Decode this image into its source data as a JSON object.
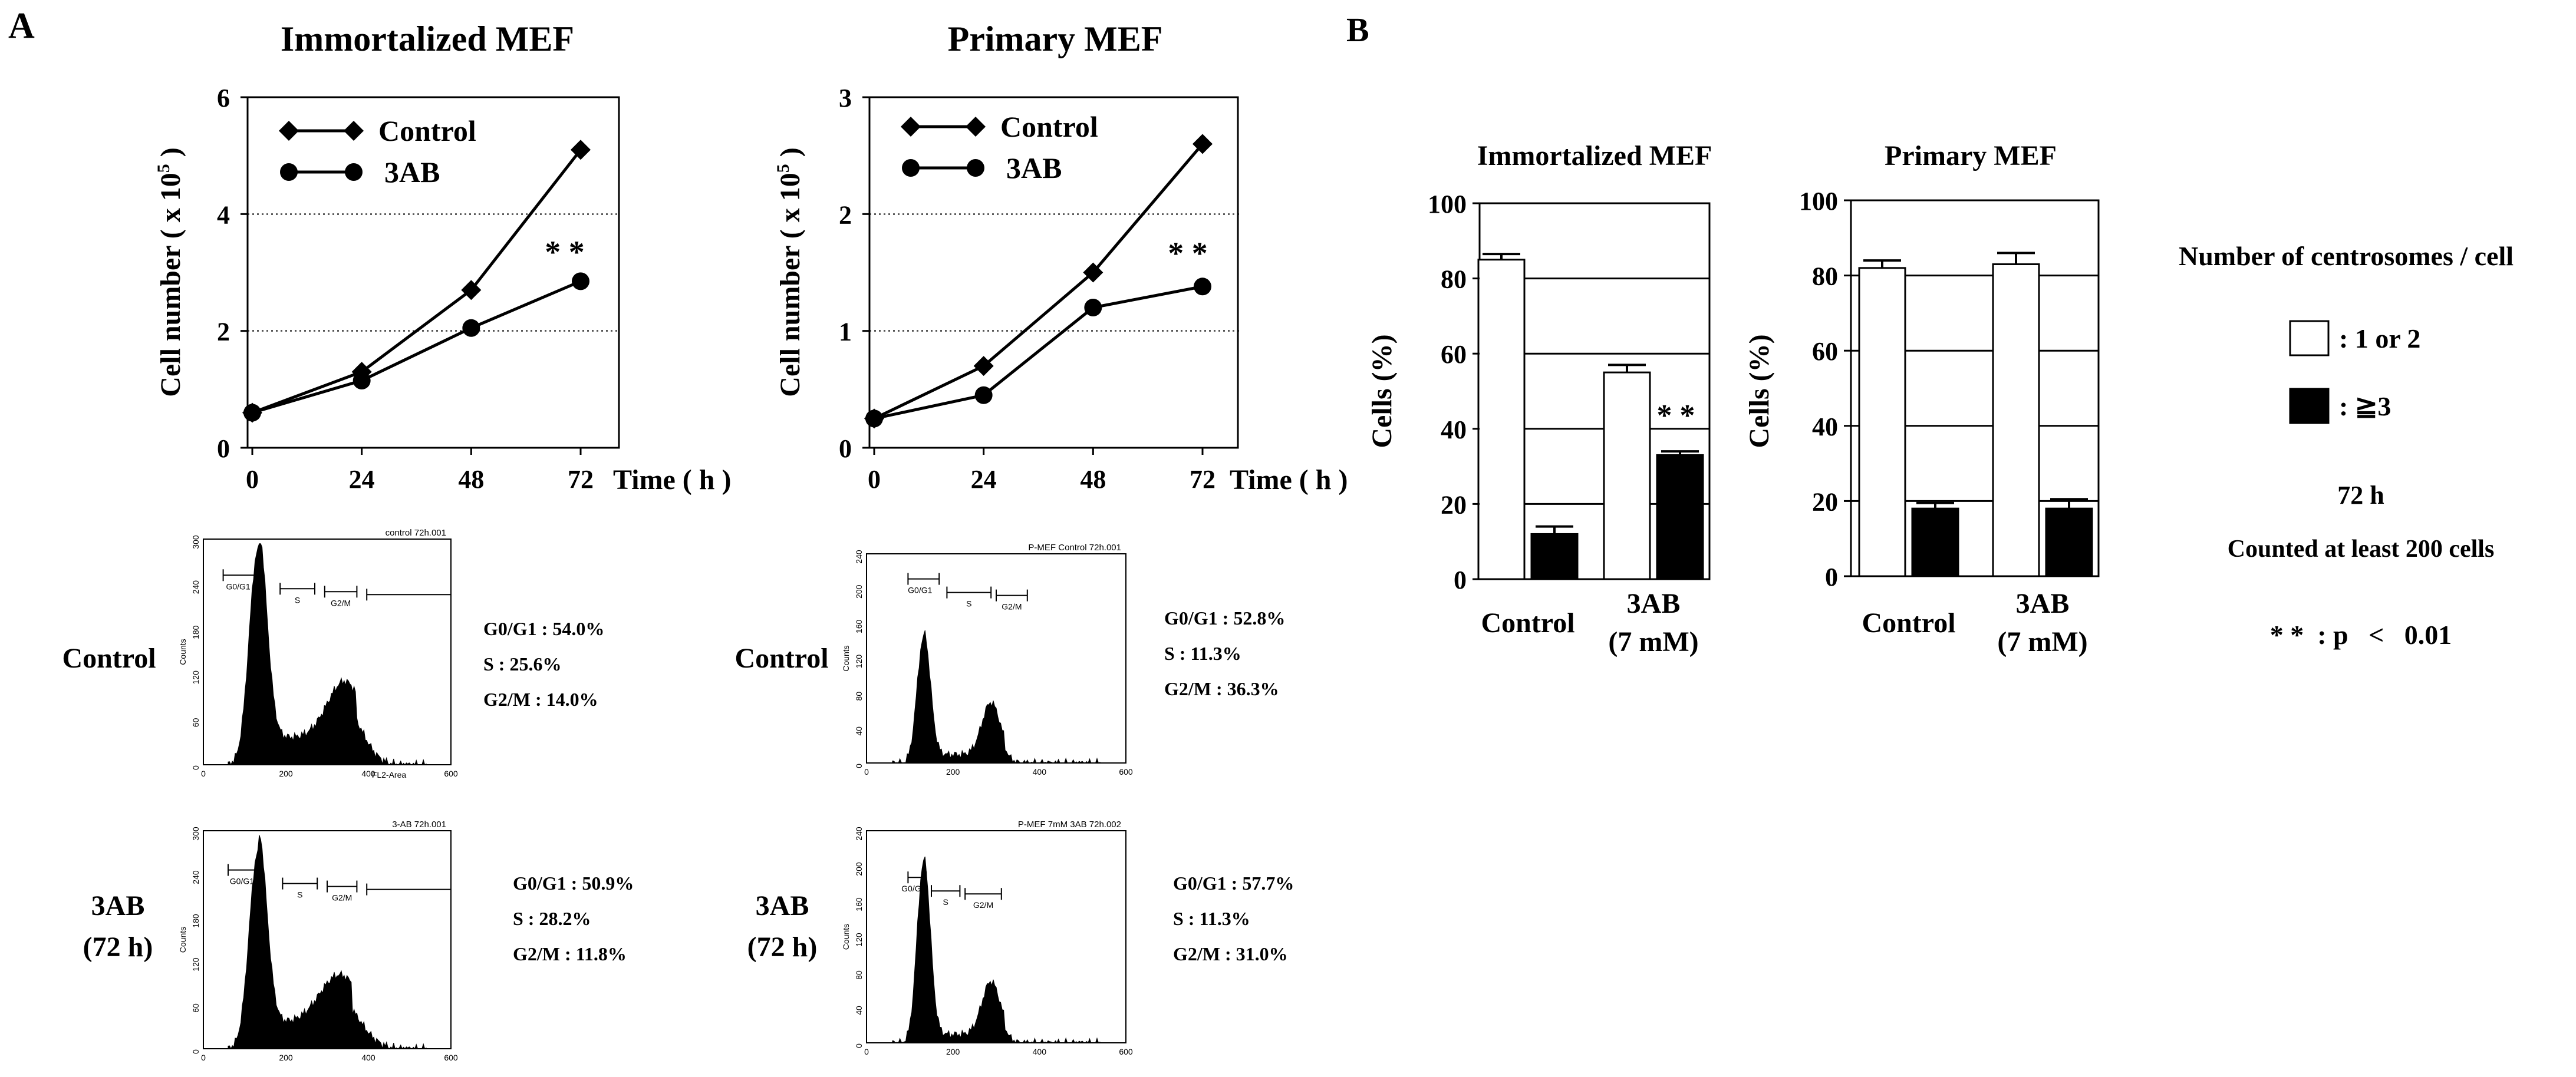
{
  "panel_labels": {
    "a": "A",
    "b": "B"
  },
  "growth_a": {
    "title": "Immortalized MEF",
    "ylabel": "Cell number ( x 10",
    "ylabel_sup": "5",
    "ylabel_end": " )",
    "xlabel": "Time ( h )",
    "sig": "* *"
  },
  "growth_b": {
    "title": "Primary MEF",
    "ylabel": "Cell number ( x 10",
    "ylabel_sup": "5",
    "ylabel_end": " )",
    "xlabel": "Time ( h )",
    "sig": "* *"
  },
  "flow": {
    "row_labels": {
      "control": "Control",
      "treat_1": "3AB",
      "treat_2": "(72 h)"
    },
    "hist": [
      {
        "title": "control 72h.001",
        "ylabel": "Counts",
        "xlabel": "FL2-Area",
        "ticks_y": [
          "0",
          "60",
          "120",
          "180",
          "240",
          "300"
        ],
        "ticks_x": [
          "0",
          "200",
          "400",
          "600"
        ],
        "gates": [
          "G0/G1",
          "S",
          "G2/M"
        ],
        "stats": [
          "G0/G1 : 54.0%",
          "S     : 25.6%",
          "G2/M   : 14.0%"
        ]
      },
      {
        "title": "P-MEF Control 72h.001",
        "ylabel": "Counts",
        "xlabel": "",
        "ticks_y": [
          "0",
          "40",
          "80",
          "120",
          "160",
          "200",
          "240"
        ],
        "ticks_x": [
          "0",
          "200",
          "400",
          "600"
        ],
        "gates": [
          "G0/G1",
          "S",
          "G2/M"
        ],
        "stats": [
          "G0/G1 : 52.8%",
          "S     : 11.3%",
          "G2/M   : 36.3%"
        ]
      },
      {
        "title": "3-AB 72h.001",
        "ylabel": "Counts",
        "xlabel": "",
        "ticks_y": [
          "0",
          "60",
          "120",
          "180",
          "240",
          "300"
        ],
        "ticks_x": [
          "0",
          "200",
          "400",
          "600"
        ],
        "gates": [
          "G0/G1",
          "S",
          "G2/M"
        ],
        "stats": [
          "G0/G1 : 50.9%",
          "S     : 28.2%",
          "G2/M   : 11.8%"
        ]
      },
      {
        "title": "P-MEF 7mM 3AB 72h.002",
        "ylabel": "Counts",
        "xlabel": "",
        "ticks_y": [
          "0",
          "40",
          "80",
          "120",
          "160",
          "200",
          "240"
        ],
        "ticks_x": [
          "0",
          "200",
          "400",
          "600"
        ],
        "gates": [
          "G0/G1",
          "S",
          "G2/M"
        ],
        "stats": [
          "G0/G1 : 57.7%",
          "S     : 11.3%",
          "G2/M   : 31.0%"
        ]
      }
    ]
  },
  "bar_a": {
    "title": "Immortalized MEF",
    "ylabel": "Cells (%)",
    "cat_1": "Control",
    "cat_2a": "3AB",
    "cat_2b": "(7 mM)",
    "sig": "* *"
  },
  "bar_b": {
    "title": "Primary MEF",
    "ylabel": "Cells (%)",
    "cat_1": "Control",
    "cat_2a": "3AB",
    "cat_2b": "(7 mM)"
  },
  "legend": {
    "title": "Number of centrosomes / cell",
    "item_open": ": 1 or 2",
    "item_filled": ": ≧3",
    "time": "72 h",
    "counted": "Counted at least 200 cells",
    "pvalue": "* *  : p   <   0.01"
  },
  "chart_data": [
    {
      "type": "line",
      "title": "Immortalized MEF",
      "xlabel": "Time ( h )",
      "ylabel": "Cell number ( x 10^5 )",
      "x": [
        0,
        24,
        48,
        72
      ],
      "xticks": [
        "0",
        "24",
        "48",
        "72"
      ],
      "yticks": [
        "0",
        "2",
        "4",
        "6"
      ],
      "ylim": [
        0,
        6
      ],
      "grid": "dotted at 2 and 4",
      "series": [
        {
          "name": "Control",
          "marker": "diamond",
          "values": [
            0.6,
            1.3,
            2.7,
            5.1
          ]
        },
        {
          "name": "3AB",
          "marker": "circle",
          "values": [
            0.6,
            1.15,
            2.05,
            2.85
          ]
        }
      ],
      "annotation": "* *"
    },
    {
      "type": "line",
      "title": "Primary MEF",
      "xlabel": "Time ( h )",
      "ylabel": "Cell number ( x 10^5 )",
      "x": [
        0,
        24,
        48,
        72
      ],
      "xticks": [
        "0",
        "24",
        "48",
        "72"
      ],
      "yticks": [
        "0",
        "1",
        "2",
        "3"
      ],
      "ylim": [
        0,
        3
      ],
      "grid": "dotted at 1 and 2",
      "series": [
        {
          "name": "Control",
          "marker": "diamond",
          "values": [
            0.25,
            0.7,
            1.5,
            2.6
          ]
        },
        {
          "name": "3AB",
          "marker": "circle",
          "values": [
            0.25,
            0.45,
            1.2,
            1.38
          ]
        }
      ],
      "annotation": "* *"
    },
    {
      "type": "bar",
      "title": "Immortalized MEF",
      "ylabel": "Cells (%)",
      "categories": [
        "Control",
        "3AB (7 mM)"
      ],
      "ylim": [
        0,
        100
      ],
      "yticks": [
        "0",
        "20",
        "40",
        "60",
        "80",
        "100"
      ],
      "series": [
        {
          "name": ": 1 or 2",
          "fill": "#ffffff",
          "values": [
            85,
            55
          ],
          "errors": [
            1.5,
            2
          ]
        },
        {
          "name": ": ≧3",
          "fill": "#000000",
          "values": [
            12,
            33
          ],
          "errors": [
            2,
            1
          ]
        }
      ],
      "annotation": "* *"
    },
    {
      "type": "bar",
      "title": "Primary MEF",
      "ylabel": "Cells (%)",
      "categories": [
        "Control",
        "3AB (7 mM)"
      ],
      "ylim": [
        0,
        100
      ],
      "yticks": [
        "0",
        "20",
        "40",
        "60",
        "80",
        "100"
      ],
      "series": [
        {
          "name": ": 1 or 2",
          "fill": "#ffffff",
          "values": [
            82,
            83
          ],
          "errors": [
            2,
            3
          ]
        },
        {
          "name": ": ≧3",
          "fill": "#000000",
          "values": [
            18,
            18
          ],
          "errors": [
            1.5,
            2.5
          ]
        }
      ]
    }
  ]
}
